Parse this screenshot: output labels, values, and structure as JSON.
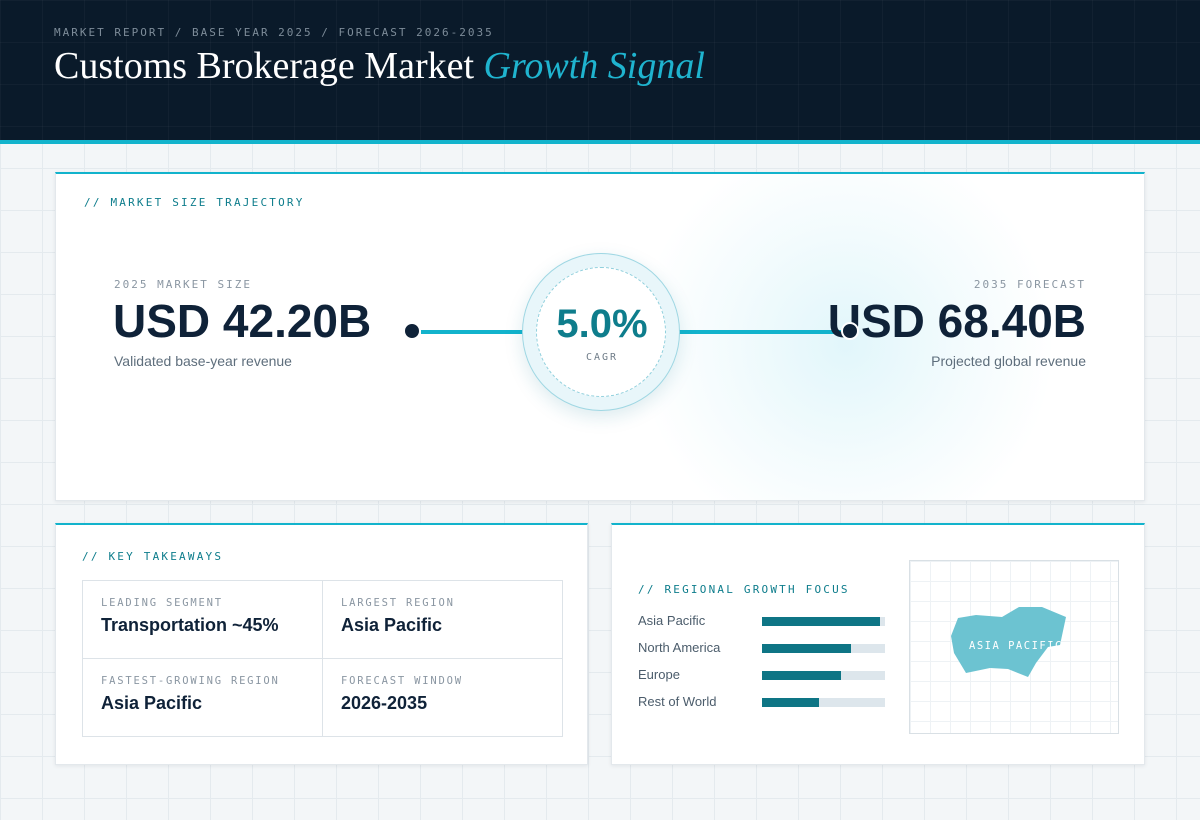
{
  "header": {
    "breadcrumb": "MARKET REPORT / BASE YEAR 2025 / FORECAST 2026-2035",
    "title_main": "Customs Brokerage Market",
    "title_accent": "Growth Signal"
  },
  "trajectory": {
    "section_label": "// MARKET SIZE TRAJECTORY",
    "start": {
      "caption": "2025 MARKET SIZE",
      "value": "USD 42.20B",
      "subtitle": "Validated base-year revenue"
    },
    "cagr": {
      "value": "5.0%",
      "label": "CAGR"
    },
    "end": {
      "caption": "2035 FORECAST",
      "value": "USD 68.40B",
      "subtitle": "Projected global revenue"
    }
  },
  "takeaways": {
    "section_label": "// KEY TAKEAWAYS",
    "items": [
      {
        "label": "LEADING SEGMENT",
        "value": "Transportation ~45%"
      },
      {
        "label": "LARGEST REGION",
        "value": "Asia Pacific"
      },
      {
        "label": "FASTEST-GROWING REGION",
        "value": "Asia Pacific"
      },
      {
        "label": "FORECAST WINDOW",
        "value": "2026-2035"
      }
    ]
  },
  "regional": {
    "section_label": "// REGIONAL GROWTH FOCUS",
    "rows": [
      {
        "name": "Asia Pacific",
        "level": 0.96
      },
      {
        "name": "North America",
        "level": 0.72
      },
      {
        "name": "Europe",
        "level": 0.64
      },
      {
        "name": "Rest of World",
        "level": 0.46
      }
    ],
    "map_label": "ASIA PACIFIC",
    "colors": {
      "bar": "#0e7585",
      "track": "#dde6ec",
      "map_shape": "#6cc3d1"
    }
  },
  "colors": {
    "accent": "#12b3cc",
    "header_bg": "#0a1a2a",
    "title_accent": "#1fb4cf",
    "cagr": "#0e7d8c",
    "ink": "#0f2238"
  }
}
